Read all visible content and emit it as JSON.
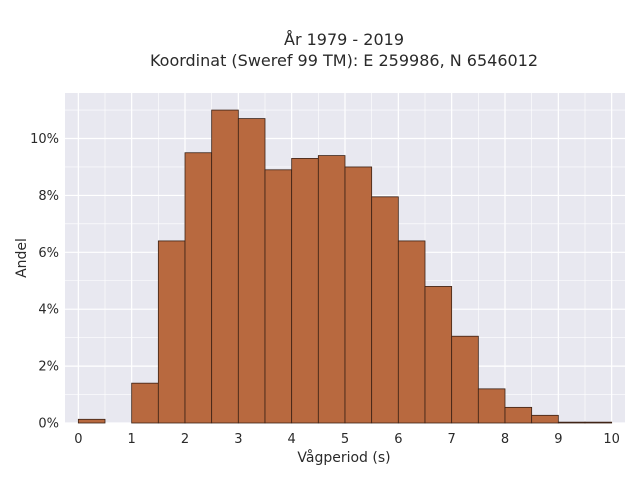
{
  "chart_data": {
    "type": "bar",
    "title_lines": [
      "År 1979 - 2019",
      "Koordinat (Sweref 99 TM): E 259986, N 6546012"
    ],
    "xlabel": "Vågperiod (s)",
    "ylabel": "Andel",
    "bin_width": 0.5,
    "bins": [
      {
        "start": 0.0,
        "value": 0.13
      },
      {
        "start": 0.5,
        "value": 0.0
      },
      {
        "start": 1.0,
        "value": 1.4
      },
      {
        "start": 1.5,
        "value": 6.4
      },
      {
        "start": 2.0,
        "value": 9.5
      },
      {
        "start": 2.5,
        "value": 11.0
      },
      {
        "start": 3.0,
        "value": 10.7
      },
      {
        "start": 3.5,
        "value": 8.9
      },
      {
        "start": 4.0,
        "value": 9.3
      },
      {
        "start": 4.5,
        "value": 9.4
      },
      {
        "start": 5.0,
        "value": 9.0
      },
      {
        "start": 5.5,
        "value": 7.95
      },
      {
        "start": 6.0,
        "value": 6.4
      },
      {
        "start": 6.5,
        "value": 4.8
      },
      {
        "start": 7.0,
        "value": 3.05
      },
      {
        "start": 7.5,
        "value": 1.2
      },
      {
        "start": 8.0,
        "value": 0.55
      },
      {
        "start": 8.5,
        "value": 0.27
      },
      {
        "start": 9.0,
        "value": 0.03
      },
      {
        "start": 9.5,
        "value": 0.03
      }
    ],
    "x_ticks": [
      "0",
      "1",
      "2",
      "3",
      "4",
      "5",
      "6",
      "7",
      "8",
      "9",
      "10"
    ],
    "y_ticks": [
      "0%",
      "2%",
      "4%",
      "6%",
      "8%",
      "10%"
    ],
    "xlim": [
      -0.25,
      10.25
    ],
    "ylim": [
      0,
      11.6
    ],
    "grid": true,
    "colors": {
      "bar_fill": "#b8693f",
      "bar_edge": "#3a2014",
      "plot_background": "#e8e8f0",
      "grid": "#ffffff"
    }
  }
}
